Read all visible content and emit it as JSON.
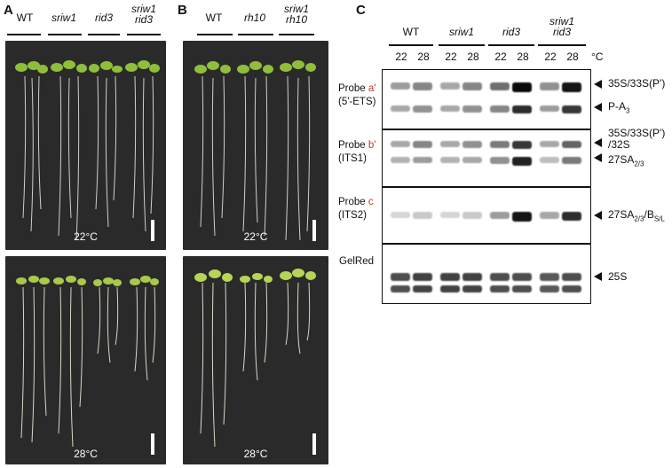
{
  "panels": {
    "A": {
      "letter": "A",
      "genotypes": [
        {
          "line1": "WT",
          "line2": ""
        },
        {
          "line1": "sriw1",
          "line2": ""
        },
        {
          "line1": "rid3",
          "line2": ""
        },
        {
          "line1": "sriw1",
          "line2": "rid3"
        }
      ],
      "temps": [
        "22°C",
        "28°C"
      ]
    },
    "B": {
      "letter": "B",
      "genotypes": [
        {
          "line1": "WT",
          "line2": ""
        },
        {
          "line1": "rh10",
          "line2": ""
        },
        {
          "line1": "sriw1",
          "line2": "rh10"
        }
      ],
      "temps": [
        "22°C",
        "28°C"
      ]
    },
    "C": {
      "letter": "C",
      "genotypes": [
        {
          "line1": "WT",
          "line2": ""
        },
        {
          "line1": "sriw1",
          "line2": ""
        },
        {
          "line1": "rid3",
          "line2": ""
        },
        {
          "line1": "sriw1",
          "line2": "rid3"
        }
      ],
      "lane_temps": [
        "22",
        "28",
        "22",
        "28",
        "22",
        "28",
        "22",
        "28"
      ],
      "temp_unit": "°C",
      "probes": [
        {
          "prefix": "Probe ",
          "letter": "a'",
          "region": "(5'-ETS)"
        },
        {
          "prefix": "Probe ",
          "letter": "b'",
          "region": "(ITS1)"
        },
        {
          "prefix": "Probe ",
          "letter": "c",
          "region": "(ITS2)"
        },
        {
          "prefix": "GelRed",
          "letter": "",
          "region": ""
        }
      ],
      "bands": {
        "b1": "35S/33S(P')",
        "b2_main": "P-A",
        "b2_sub": "3",
        "b3_line1": "35S/33S(P')",
        "b3_line2": "/32S",
        "b4_main": "27SA",
        "b4_sub": "2/3",
        "b5_main": "27SA",
        "b5_sub": "2/3",
        "b5_mid": "/B",
        "b5_sub2": "S/L",
        "b6": "25S"
      },
      "intensities": {
        "row_a_top": [
          0.35,
          0.45,
          0.3,
          0.45,
          0.55,
          1.0,
          0.4,
          0.95
        ],
        "row_a_bottom": [
          0.3,
          0.4,
          0.3,
          0.4,
          0.45,
          0.85,
          0.35,
          0.8
        ],
        "row_b_top": [
          0.3,
          0.45,
          0.3,
          0.4,
          0.5,
          0.8,
          0.3,
          0.6
        ],
        "row_b_bottom": [
          0.25,
          0.35,
          0.25,
          0.3,
          0.4,
          0.9,
          0.2,
          0.5
        ],
        "row_c": [
          0.1,
          0.15,
          0.1,
          0.15,
          0.35,
          0.95,
          0.3,
          0.85
        ],
        "row_gel": [
          0.7,
          0.75,
          0.75,
          0.75,
          0.7,
          0.7,
          0.65,
          0.7
        ]
      }
    }
  }
}
